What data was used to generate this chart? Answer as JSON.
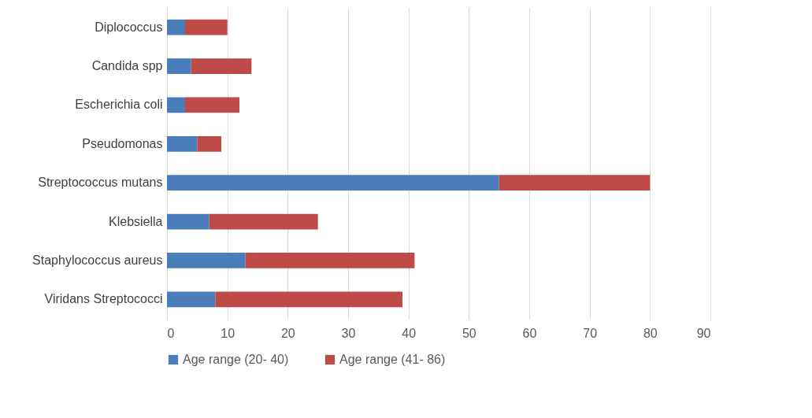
{
  "chart_data": {
    "type": "bar",
    "orientation": "horizontal",
    "stacked": true,
    "categories": [
      "Diplococcus",
      "Candida spp",
      "Escherichia coli",
      "Pseudomonas",
      "Streptococcus mutans",
      "Klebsiella",
      "Staphylococcus aureus",
      "Viridans Streptococci"
    ],
    "series": [
      {
        "name": "Age range  (20- 40)",
        "color": "#4a7ebb",
        "values": [
          3,
          4,
          3,
          5,
          55,
          7,
          13,
          8
        ]
      },
      {
        "name": "Age range  (41- 86)",
        "color": "#be4b48",
        "values": [
          7,
          10,
          9,
          4,
          25,
          18,
          28,
          31
        ]
      }
    ],
    "xlim": [
      0,
      90
    ],
    "xticks": [
      0,
      10,
      20,
      30,
      40,
      50,
      60,
      70,
      80,
      90
    ],
    "grid": "x",
    "legend": "bottom"
  }
}
